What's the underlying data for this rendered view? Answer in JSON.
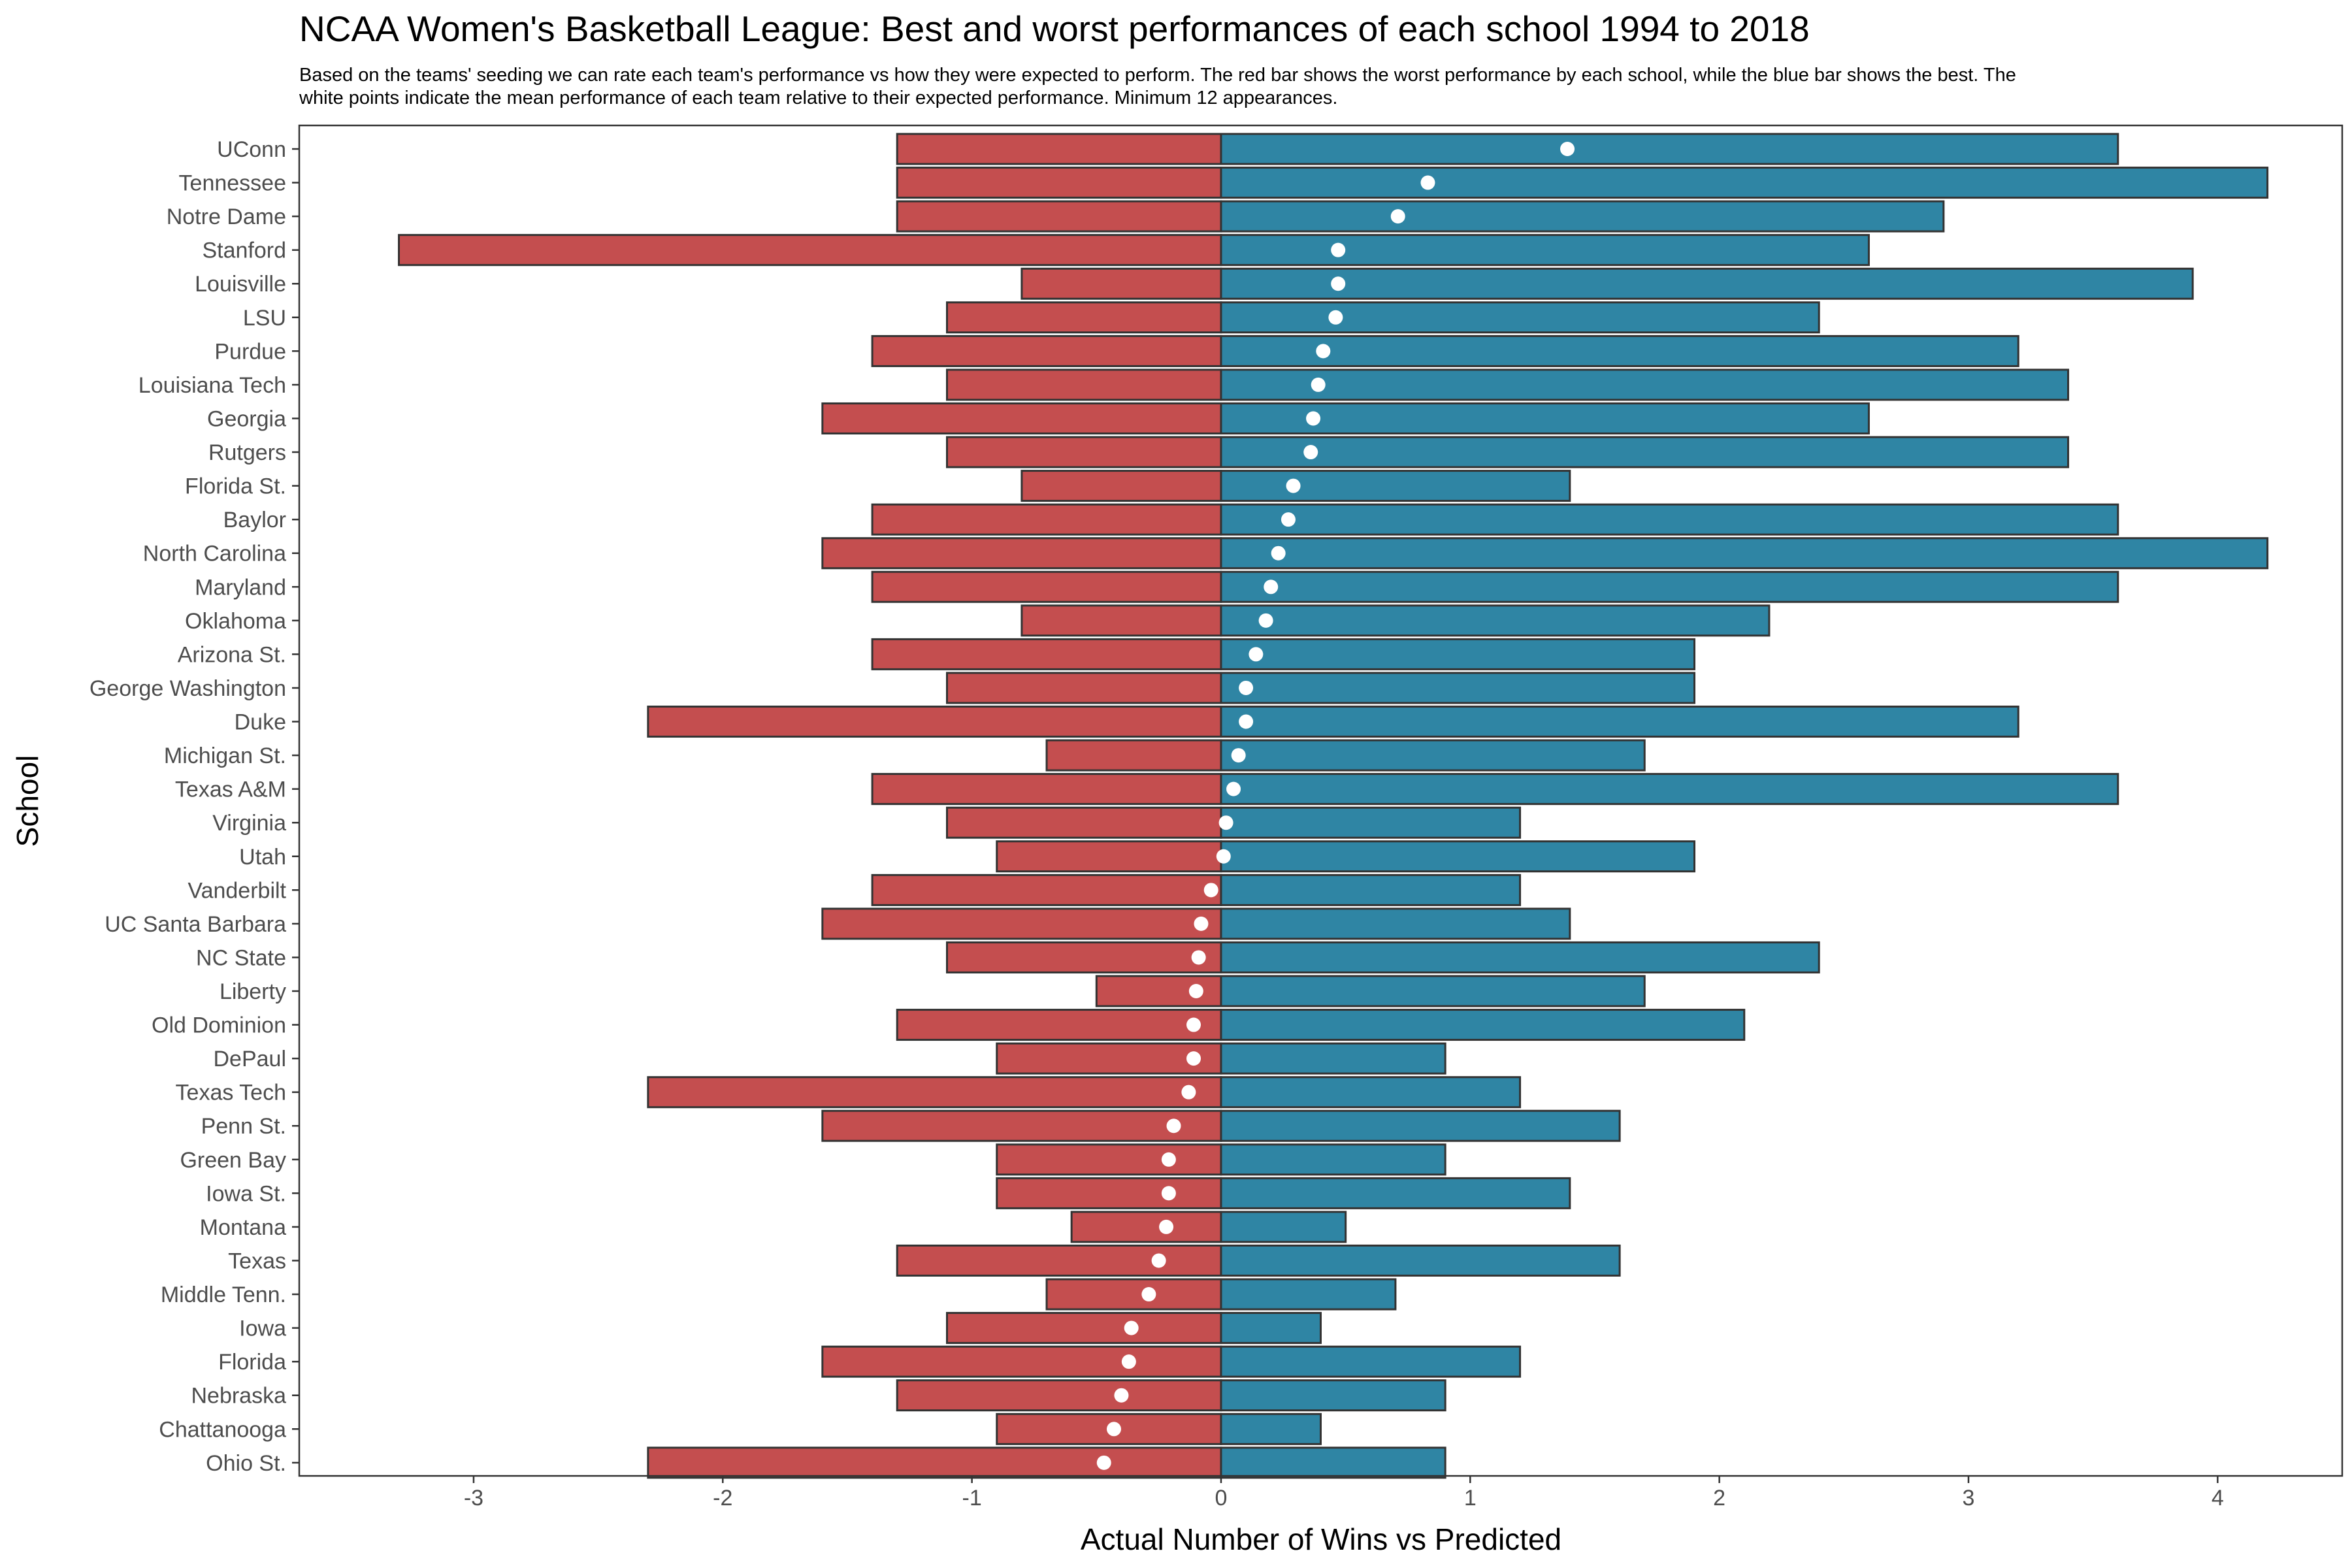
{
  "chart_data": {
    "type": "bar",
    "title": "NCAA Women's Basketball League: Best and worst performances of each school 1994 to 2018",
    "subtitle": "Based on the teams' seeding we can rate each team's performance vs how they were expected to perform. The red bar shows the worst performance by each school, while the blue bar shows the best. The white points indicate the mean performance of each team relative to their expected performance. Minimum 12 appearances.",
    "xlabel": "Actual Number of Wins vs Predicted",
    "ylabel": "School",
    "orientation": "horizontal",
    "xlim": [
      -3.7,
      4.5
    ],
    "xticks": [
      -3,
      -2,
      -1,
      0,
      1,
      2,
      3,
      4
    ],
    "grid": false,
    "legend": "none",
    "colors": {
      "worst": "#c44e4f",
      "best": "#2f85a4",
      "mean": "#ffffff",
      "outline": "#333333"
    },
    "categories": [
      "UConn",
      "Tennessee",
      "Notre Dame",
      "Stanford",
      "Louisville",
      "LSU",
      "Purdue",
      "Louisiana Tech",
      "Georgia",
      "Rutgers",
      "Florida St.",
      "Baylor",
      "North Carolina",
      "Maryland",
      "Oklahoma",
      "Arizona St.",
      "George Washington",
      "Duke",
      "Michigan St.",
      "Texas A&M",
      "Virginia",
      "Utah",
      "Vanderbilt",
      "UC Santa Barbara",
      "NC State",
      "Liberty",
      "Old Dominion",
      "DePaul",
      "Texas Tech",
      "Penn St.",
      "Green Bay",
      "Iowa St.",
      "Montana",
      "Texas",
      "Middle Tenn.",
      "Iowa",
      "Florida",
      "Nebraska",
      "Chattanooga",
      "Ohio St."
    ],
    "series": [
      {
        "key": "worst",
        "values": [
          -1.3,
          -1.3,
          -1.3,
          -3.3,
          -0.8,
          -1.1,
          -1.4,
          -1.1,
          -1.6,
          -1.1,
          -0.8,
          -1.4,
          -1.6,
          -1.4,
          -0.8,
          -1.4,
          -1.1,
          -2.3,
          -0.7,
          -1.4,
          -1.1,
          -0.9,
          -1.4,
          -1.6,
          -1.1,
          -0.5,
          -1.3,
          -0.9,
          -2.3,
          -1.6,
          -0.9,
          -0.9,
          -0.6,
          -1.3,
          -0.7,
          -1.1,
          -1.6,
          -1.3,
          -0.9,
          -2.3
        ]
      },
      {
        "key": "best",
        "values": [
          3.6,
          4.2,
          2.9,
          2.6,
          3.9,
          2.4,
          3.2,
          3.4,
          2.6,
          3.4,
          1.4,
          3.6,
          4.2,
          3.6,
          2.2,
          1.9,
          1.9,
          3.2,
          1.7,
          3.6,
          1.2,
          1.9,
          1.2,
          1.4,
          2.4,
          1.7,
          2.1,
          0.9,
          1.2,
          1.6,
          0.9,
          1.4,
          0.5,
          1.6,
          0.7,
          0.4,
          1.2,
          0.9,
          0.4,
          0.9
        ]
      },
      {
        "key": "mean",
        "values": [
          1.39,
          0.83,
          0.71,
          0.47,
          0.47,
          0.46,
          0.41,
          0.39,
          0.37,
          0.36,
          0.29,
          0.27,
          0.23,
          0.2,
          0.18,
          0.14,
          0.1,
          0.1,
          0.07,
          0.05,
          0.02,
          0.01,
          -0.04,
          -0.08,
          -0.09,
          -0.1,
          -0.11,
          -0.11,
          -0.13,
          -0.19,
          -0.21,
          -0.21,
          -0.22,
          -0.25,
          -0.29,
          -0.36,
          -0.37,
          -0.4,
          -0.43,
          -0.47
        ]
      }
    ]
  }
}
